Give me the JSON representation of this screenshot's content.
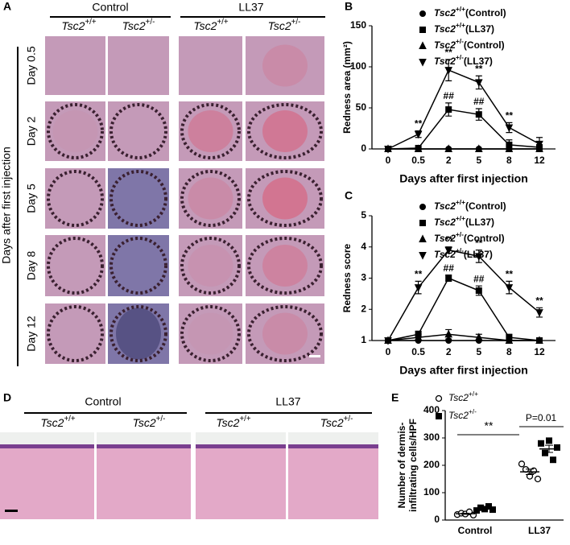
{
  "panel_labels": [
    "A",
    "B",
    "C",
    "D",
    "E"
  ],
  "panel_a": {
    "groups": [
      "Control",
      "LL37"
    ],
    "genotypes": [
      "Tsc2+/+",
      "Tsc2+/-",
      "Tsc2+/+",
      "Tsc2+/-"
    ],
    "rows": [
      "Day 0.5",
      "Day 2",
      "Day 5",
      "Day 8",
      "Day 12"
    ],
    "side_label": "Days after first injection"
  },
  "panel_d": {
    "groups": [
      "Control",
      "LL37"
    ],
    "genotypes": [
      "Tsc2+/+",
      "Tsc2+/-",
      "Tsc2+/+",
      "Tsc2+/-"
    ]
  },
  "chart_data": [
    {
      "type": "line",
      "xlabel": "Days after first injection",
      "ylabel": "Redness area (mm²)",
      "categories": [
        "0",
        "0.5",
        "2",
        "5",
        "8",
        "12"
      ],
      "ylim": [
        0,
        150
      ],
      "yticks": [
        0,
        50,
        100,
        150
      ],
      "series": [
        {
          "name": "Tsc2+/+(Control)",
          "marker": "circle",
          "color": "#000000",
          "values": [
            0,
            0,
            0,
            0,
            0,
            0
          ]
        },
        {
          "name": "Tsc2+/+(LL37)",
          "marker": "square",
          "color": "#000000",
          "values": [
            0,
            1,
            48,
            42,
            5,
            2
          ],
          "errors": [
            0,
            1,
            8,
            7,
            6,
            3
          ]
        },
        {
          "name": "Tsc2+/-(Control)",
          "marker": "triangle",
          "color": "#000000",
          "values": [
            0,
            0,
            0,
            0,
            0,
            0
          ]
        },
        {
          "name": "Tsc2+/-(LL37)",
          "marker": "triangle-down",
          "color": "#000000",
          "values": [
            0,
            18,
            96,
            81,
            26,
            6
          ],
          "errors": [
            0,
            4,
            13,
            8,
            6,
            8
          ]
        }
      ],
      "annotations": [
        {
          "text": "**",
          "x": "0.5",
          "series": "Tsc2+/-(LL37)"
        },
        {
          "text": "**",
          "x": "2",
          "series": "Tsc2+/-(LL37)"
        },
        {
          "text": "**",
          "x": "5",
          "series": "Tsc2+/-(LL37)"
        },
        {
          "text": "**",
          "x": "8",
          "series": "Tsc2+/-(LL37)"
        },
        {
          "text": "##",
          "x": "2",
          "series": "Tsc2+/+(LL37)"
        },
        {
          "text": "##",
          "x": "5",
          "series": "Tsc2+/+(LL37)"
        }
      ]
    },
    {
      "type": "line",
      "xlabel": "Days after first injection",
      "ylabel": "Redness score",
      "categories": [
        "0",
        "0.5",
        "2",
        "5",
        "8",
        "12"
      ],
      "ylim": [
        1,
        5
      ],
      "yticks": [
        1,
        2,
        3,
        4,
        5
      ],
      "series": [
        {
          "name": "Tsc2+/+(Control)",
          "marker": "circle",
          "color": "#000000",
          "values": [
            1,
            1,
            1,
            1,
            1,
            1
          ]
        },
        {
          "name": "Tsc2+/+(LL37)",
          "marker": "square",
          "color": "#000000",
          "values": [
            1,
            1.2,
            3.0,
            2.6,
            1.1,
            1.0
          ],
          "errors": [
            0,
            0.1,
            0.1,
            0.15,
            0.1,
            0
          ]
        },
        {
          "name": "Tsc2+/-(Control)",
          "marker": "triangle",
          "color": "#000000",
          "values": [
            1,
            1.1,
            1.2,
            1.1,
            1,
            1
          ],
          "errors": [
            0,
            0.1,
            0.15,
            0.1,
            0,
            0
          ]
        },
        {
          "name": "Tsc2+/-(LL37)",
          "marker": "triangle-down",
          "color": "#000000",
          "values": [
            1,
            2.7,
            3.9,
            3.7,
            2.7,
            1.9
          ],
          "errors": [
            0,
            0.2,
            0.1,
            0.2,
            0.2,
            0.15
          ]
        }
      ],
      "annotations": [
        {
          "text": "**",
          "x": "0.5",
          "series": "Tsc2+/-(LL37)"
        },
        {
          "text": "**",
          "x": "2",
          "series": "Tsc2+/-(LL37)"
        },
        {
          "text": "**",
          "x": "5",
          "series": "Tsc2+/-(LL37)"
        },
        {
          "text": "**",
          "x": "8",
          "series": "Tsc2+/-(LL37)"
        },
        {
          "text": "**",
          "x": "12",
          "series": "Tsc2+/-(LL37)"
        },
        {
          "text": "##",
          "x": "2",
          "series": "Tsc2+/+(LL37)"
        },
        {
          "text": "##",
          "x": "5",
          "series": "Tsc2+/+(LL37)"
        }
      ]
    },
    {
      "type": "dot",
      "ylabel": [
        "Number of dermis-",
        "infiltrating cells/HPF"
      ],
      "categories": [
        "Control",
        "LL37"
      ],
      "ylim": [
        0,
        400
      ],
      "yticks": [
        0,
        100,
        200,
        300,
        400
      ],
      "series": [
        {
          "name": "Tsc2+/+",
          "marker": "open-circle",
          "color": "#000000",
          "values": [
            [
              20,
              25,
              22,
              30,
              18
            ],
            [
              205,
              185,
              160,
              180,
              150
            ]
          ],
          "mean": [
            23,
            176
          ],
          "sem": [
            2,
            10
          ]
        },
        {
          "name": "Tsc2+/-",
          "marker": "square",
          "color": "#000000",
          "values": [
            [
              35,
              45,
              40,
              50,
              38
            ],
            [
              280,
              245,
              290,
              220,
              265
            ]
          ],
          "mean": [
            42,
            260
          ],
          "sem": [
            3,
            13
          ]
        }
      ],
      "annotations": [
        "**",
        "P=0.01"
      ]
    }
  ]
}
